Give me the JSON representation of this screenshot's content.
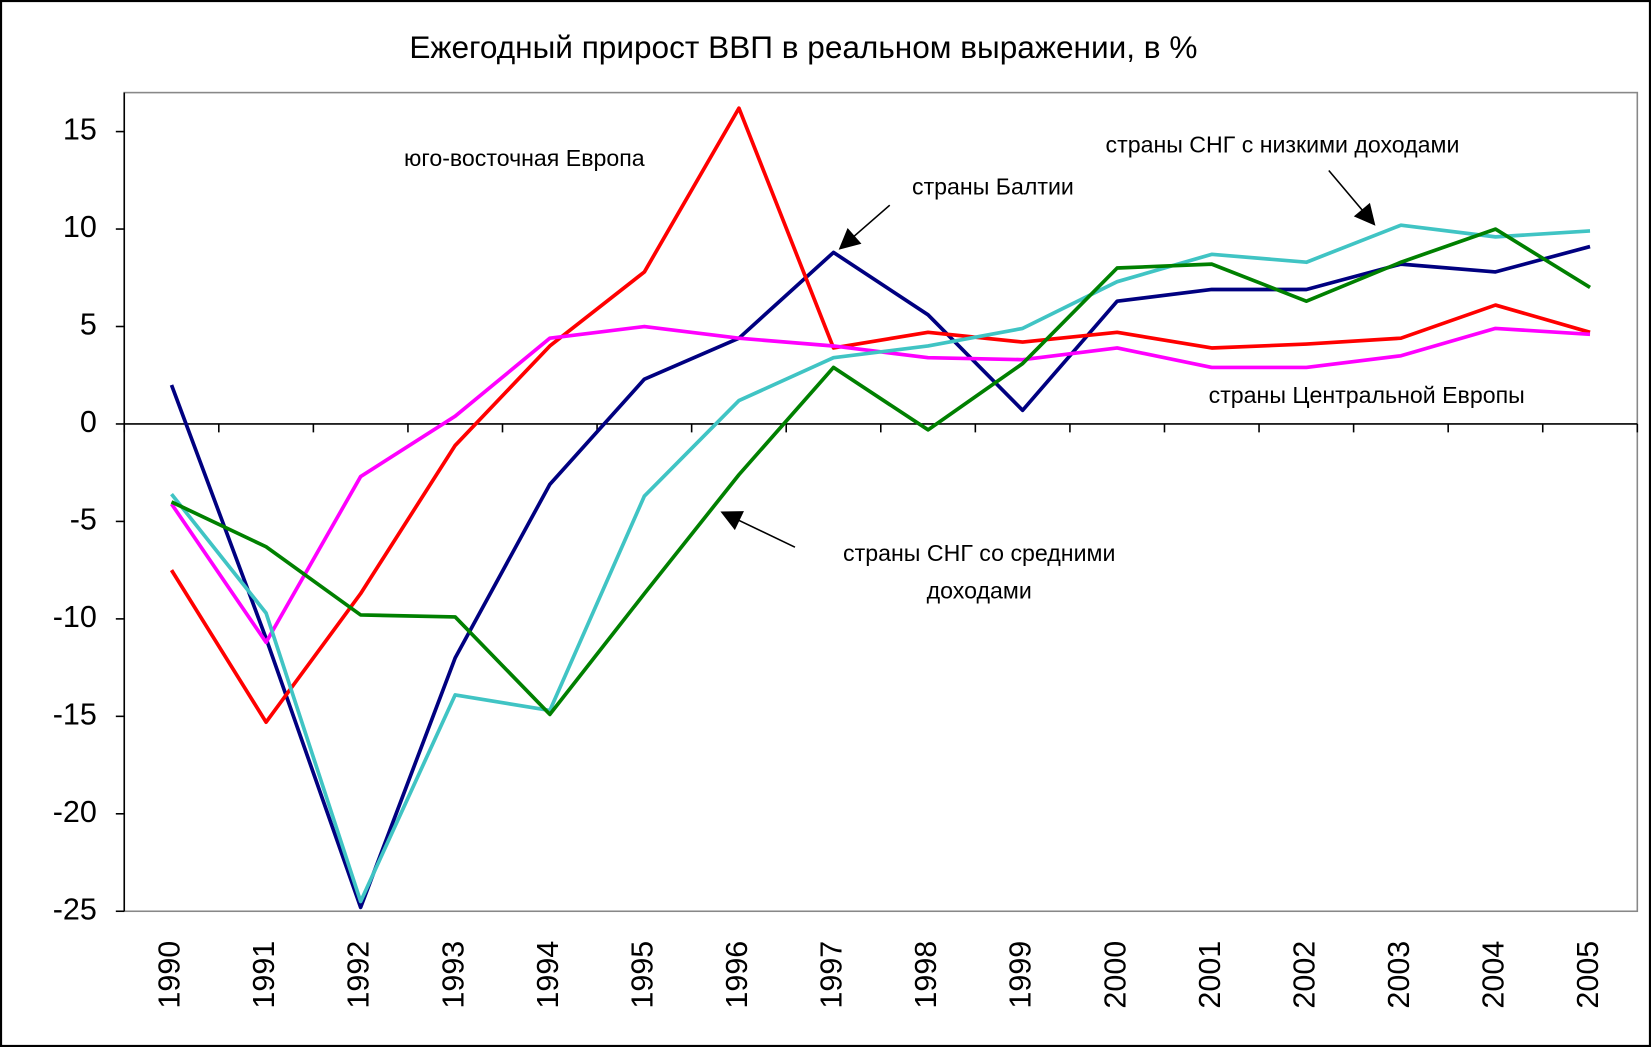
{
  "chart_data": {
    "type": "line",
    "title": "Ежегодный прирост ВВП в реальном выражении, в %",
    "categories": [
      "1990",
      "1991",
      "1992",
      "1993",
      "1994",
      "1995",
      "1996",
      "1997",
      "1998",
      "1999",
      "2000",
      "2001",
      "2002",
      "2003",
      "2004",
      "2005"
    ],
    "ylim": [
      -25,
      17
    ],
    "yticks": [
      -25,
      -20,
      -15,
      -10,
      -5,
      0,
      5,
      10,
      15
    ],
    "grid": false,
    "series": [
      {
        "name": "страны Балтии",
        "color": "#000080",
        "values": [
          2.0,
          -11,
          -24.8,
          -12,
          -3.1,
          2.3,
          4.4,
          8.8,
          5.6,
          0.7,
          6.3,
          6.9,
          6.9,
          8.2,
          7.8,
          9.1
        ]
      },
      {
        "name": "юго-восточная Европа",
        "color": "#ff0000",
        "values": [
          -7.5,
          -15.3,
          -8.7,
          -1.1,
          4.0,
          7.8,
          16.2,
          3.9,
          4.7,
          4.2,
          4.7,
          3.9,
          4.1,
          4.4,
          6.1,
          4.7
        ]
      },
      {
        "name": "страны Центральной Европы",
        "color": "#ff00ff",
        "values": [
          -4.1,
          -11.2,
          -2.7,
          0.4,
          4.4,
          5.0,
          4.4,
          4.0,
          3.4,
          3.3,
          3.9,
          2.9,
          2.9,
          3.5,
          4.9,
          4.6
        ]
      },
      {
        "name": "страны СНГ с низкими доходами",
        "color": "#40c4c4",
        "values": [
          -3.6,
          -9.7,
          -24.5,
          -13.9,
          -14.7,
          -3.7,
          1.2,
          3.4,
          4.0,
          4.9,
          7.3,
          8.7,
          8.3,
          10.2,
          9.6,
          9.9
        ]
      },
      {
        "name": "страны СНГ со средними доходами",
        "color": "#008000",
        "values": [
          -4.0,
          -6.3,
          -9.8,
          -9.9,
          -14.9,
          -8.7,
          -2.6,
          2.9,
          -0.3,
          3.1,
          8.0,
          8.2,
          6.3,
          8.3,
          10.0,
          7.0
        ]
      }
    ]
  }
}
